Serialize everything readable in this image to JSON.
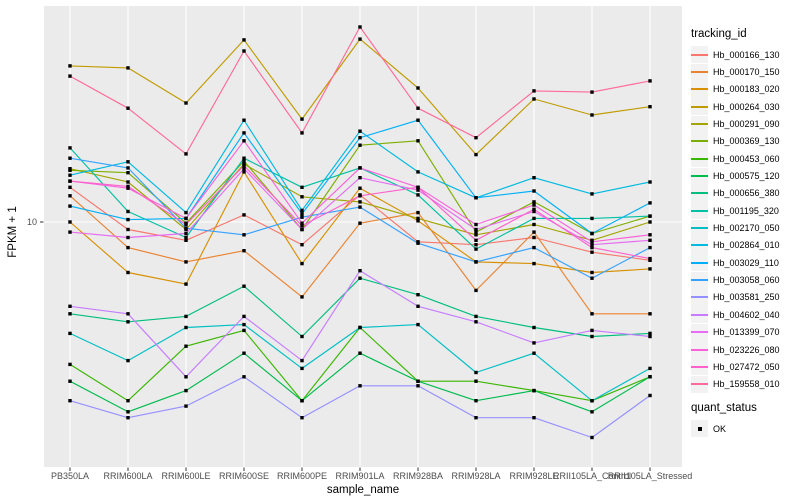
{
  "figure": {
    "y_axis": {
      "title": "FPKM + 1",
      "tick_label": "10"
    },
    "x_axis": {
      "title": "sample_name"
    },
    "legend": {
      "title": "tracking_id"
    },
    "quant_legend": {
      "title": "quant_status",
      "ok_label": "OK"
    }
  },
  "chart_data": {
    "type": "line",
    "title": "",
    "xlabel": "sample_name",
    "ylabel": "FPKM + 1",
    "y_scale": "log10",
    "y_tick_labels": [
      "10"
    ],
    "y_tick_values": [
      10
    ],
    "ylim_approx": [
      1.3,
      58
    ],
    "grid": "white major gridlines on gray panel",
    "legend_position": "right",
    "panel_background": "#EBEBEB",
    "grid_color": "#FFFFFF",
    "axis_text_color": "#4D4D4D",
    "point_shape": "filled-black-square",
    "point_legend": {
      "title": "quant_status",
      "label": "OK",
      "color": "#000000"
    },
    "x": [
      "PB350LA",
      "RRIM600LA",
      "RRIM600LE",
      "RRIM600SE",
      "RRIM600PE",
      "RRIM901LA",
      "RRIM928BA",
      "RRIM928LA",
      "RRIM928LE",
      "RRII105LA_Control",
      "RRII105LA_Stressed"
    ],
    "series": [
      {
        "name": "Hb_000166_130",
        "color": "#F8766D",
        "values": [
          13.3,
          9.4,
          8.6,
          10.6,
          8.3,
          12.5,
          8.5,
          8.3,
          8.8,
          7.8,
          7.3
        ]
      },
      {
        "name": "Hb_000170_150",
        "color": "#EA8331",
        "values": [
          12.4,
          8.1,
          7.2,
          7.9,
          5.4,
          9.9,
          10.8,
          5.7,
          9.2,
          4.7,
          4.7
        ]
      },
      {
        "name": "Hb_000183_020",
        "color": "#D89000",
        "values": [
          10.0,
          6.6,
          6.0,
          15.1,
          7.1,
          13.2,
          10.1,
          7.2,
          7.1,
          6.6,
          6.8
        ]
      },
      {
        "name": "Hb_000264_030",
        "color": "#C09B00",
        "values": [
          36.1,
          35.5,
          26.6,
          44.7,
          23.3,
          45.0,
          30.1,
          17.4,
          27.5,
          24.1,
          25.8
        ]
      },
      {
        "name": "Hb_000291_090",
        "color": "#A3A500",
        "values": [
          15.5,
          13.9,
          9.4,
          16.1,
          12.3,
          11.8,
          10.3,
          9.0,
          9.8,
          8.6,
          10.0
        ]
      },
      {
        "name": "Hb_000369_130",
        "color": "#7CAE00",
        "values": [
          15.3,
          15.0,
          9.9,
          16.5,
          9.4,
          18.8,
          19.5,
          9.2,
          11.8,
          9.1,
          10.5
        ]
      },
      {
        "name": "Hb_000453_060",
        "color": "#39B600",
        "values": [
          3.1,
          2.3,
          3.6,
          4.1,
          2.3,
          4.2,
          2.7,
          2.7,
          2.5,
          2.3,
          2.8
        ]
      },
      {
        "name": "Hb_000575_120",
        "color": "#00BB4E",
        "values": [
          2.7,
          2.1,
          2.5,
          3.4,
          2.3,
          3.4,
          2.7,
          2.3,
          2.5,
          2.1,
          2.8
        ]
      },
      {
        "name": "Hb_000656_380",
        "color": "#00BF7D",
        "values": [
          4.7,
          4.4,
          4.6,
          5.9,
          3.9,
          6.3,
          5.5,
          4.6,
          4.2,
          3.9,
          4.0
        ]
      },
      {
        "name": "Hb_001195_320",
        "color": "#00C1A3",
        "values": [
          18.4,
          10.9,
          8.8,
          16.9,
          13.3,
          15.6,
          12.5,
          8.0,
          10.3,
          10.3,
          10.5
        ]
      },
      {
        "name": "Hb_002170_050",
        "color": "#00BFC4",
        "values": [
          4.0,
          3.2,
          4.2,
          4.3,
          3.0,
          4.2,
          4.3,
          2.9,
          3.4,
          2.3,
          3.0
        ]
      },
      {
        "name": "Hb_002864_010",
        "color": "#00BAE0",
        "values": [
          14.7,
          16.4,
          10.8,
          23.1,
          11.0,
          21.1,
          15.1,
          12.2,
          14.4,
          12.6,
          13.9
        ]
      },
      {
        "name": "Hb_003029_110",
        "color": "#00B0F6",
        "values": [
          11.4,
          10.2,
          10.3,
          20.8,
          10.7,
          20.0,
          23.1,
          12.2,
          12.9,
          9.1,
          11.7
        ]
      },
      {
        "name": "Hb_003058_060",
        "color": "#35A2FF",
        "values": [
          16.9,
          15.6,
          9.5,
          9.0,
          10.4,
          11.3,
          8.4,
          7.2,
          8.1,
          6.3,
          8.1
        ]
      },
      {
        "name": "Hb_003581_250",
        "color": "#9590FF",
        "values": [
          2.3,
          2.0,
          2.2,
          2.8,
          2.0,
          2.6,
          2.6,
          2.0,
          2.0,
          1.7,
          2.4
        ]
      },
      {
        "name": "Hb_004602_040",
        "color": "#C77CFF",
        "values": [
          5.0,
          4.7,
          2.8,
          4.6,
          3.2,
          6.7,
          5.0,
          4.4,
          3.7,
          4.1,
          3.9
        ]
      },
      {
        "name": "Hb_013399_070",
        "color": "#E76BF3",
        "values": [
          9.2,
          8.8,
          9.1,
          15.5,
          9.4,
          14.4,
          13.0,
          9.4,
          10.9,
          8.3,
          8.6
        ]
      },
      {
        "name": "Hb_023226_080",
        "color": "#FA62DB",
        "values": [
          14.0,
          13.2,
          10.3,
          19.5,
          9.9,
          15.6,
          13.3,
          9.8,
          11.5,
          8.5,
          9.0
        ]
      },
      {
        "name": "Hb_027472_050",
        "color": "#FF61CC",
        "values": [
          14.0,
          13.4,
          9.8,
          15.9,
          9.7,
          12.4,
          13.3,
          8.6,
          11.1,
          8.1,
          7.4
        ]
      },
      {
        "name": "Hb_159558_010",
        "color": "#FF6A98",
        "values": [
          33.2,
          25.5,
          17.5,
          40.8,
          20.8,
          49.7,
          25.5,
          20.0,
          29.4,
          29.1,
          31.9
        ]
      }
    ]
  }
}
